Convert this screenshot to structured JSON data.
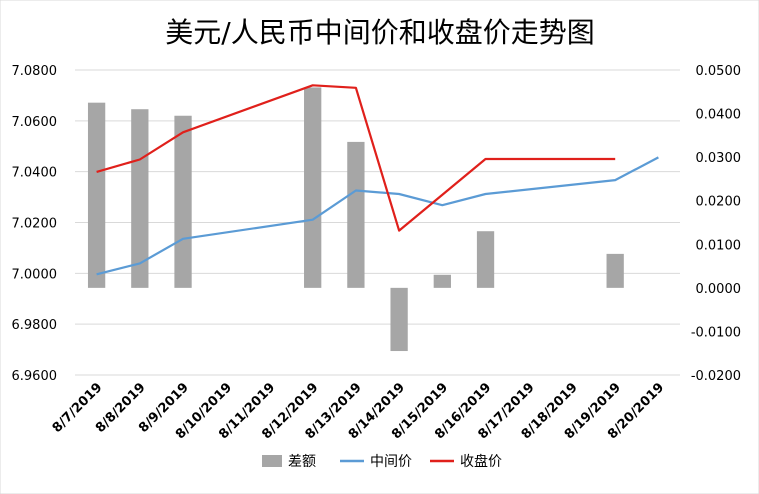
{
  "chart_data": {
    "type": "bar+line",
    "title": "美元/人民币中间价和收盘价走势图",
    "categories": [
      "8/7/2019",
      "8/8/2019",
      "8/9/2019",
      "8/10/2019",
      "8/11/2019",
      "8/12/2019",
      "8/13/2019",
      "8/14/2019",
      "8/15/2019",
      "8/16/2019",
      "8/17/2019",
      "8/18/2019",
      "8/19/2019",
      "8/20/2019"
    ],
    "y_left": {
      "ylim": [
        6.96,
        7.08
      ],
      "ticks": [
        "6.9600",
        "6.9800",
        "7.0000",
        "7.0200",
        "7.0400",
        "7.0600",
        "7.0800"
      ],
      "tick_values": [
        6.96,
        6.98,
        7.0,
        7.02,
        7.04,
        7.06,
        7.08
      ]
    },
    "y_right": {
      "ylim": [
        -0.02,
        0.05
      ],
      "ticks": [
        "-0.0200",
        "-0.0100",
        "0.0000",
        "0.0100",
        "0.0200",
        "0.0300",
        "0.0400",
        "0.0500"
      ],
      "tick_values": [
        -0.02,
        -0.01,
        0.0,
        0.01,
        0.02,
        0.03,
        0.04,
        0.05
      ]
    },
    "series": [
      {
        "name": "差额",
        "type": "bar",
        "axis": "right",
        "color": "#a6a6a6",
        "values": [
          0.0425,
          0.041,
          0.0395,
          null,
          null,
          0.046,
          0.0335,
          -0.0145,
          0.003,
          0.013,
          null,
          null,
          0.0078,
          null
        ]
      },
      {
        "name": "中间价",
        "type": "line",
        "axis": "left",
        "color": "#5b9bd5",
        "values": [
          6.9996,
          7.0039,
          7.0136,
          null,
          null,
          7.0211,
          7.0326,
          7.0312,
          7.0268,
          7.0312,
          null,
          null,
          7.0367,
          7.0456
        ]
      },
      {
        "name": "收盘价",
        "type": "line",
        "axis": "left",
        "color": "#e0201b",
        "values": [
          7.0399,
          7.0448,
          7.0555,
          null,
          null,
          7.074,
          7.073,
          7.0168,
          null,
          7.045,
          null,
          null,
          7.045,
          null
        ]
      }
    ],
    "grid": true,
    "legend_position": "bottom"
  }
}
